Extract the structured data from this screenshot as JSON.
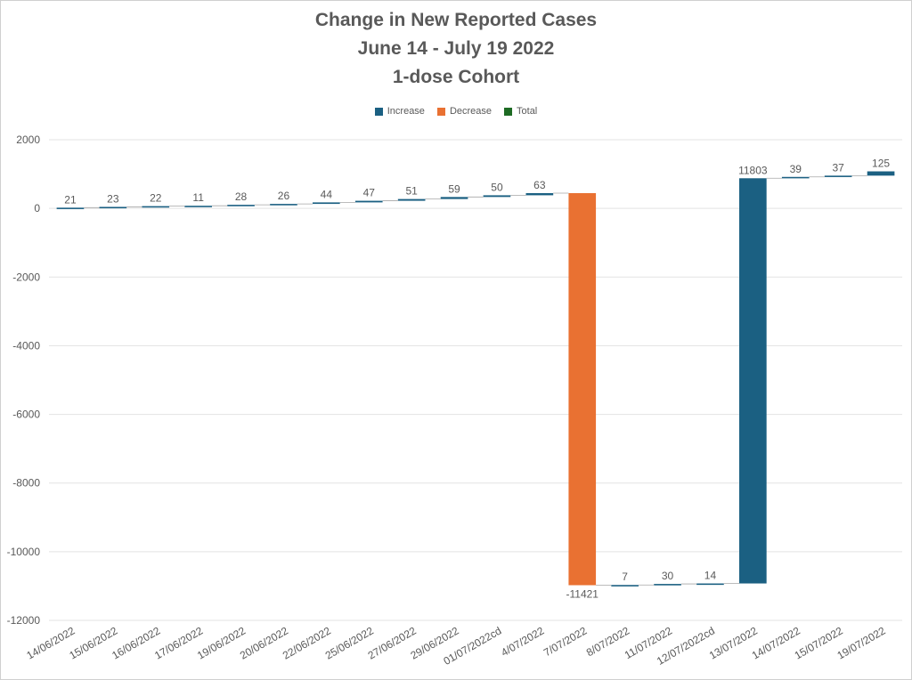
{
  "chart_data": {
    "type": "waterfall",
    "title_lines": [
      "Change in New Reported Cases",
      "June 14 - July 19 2022",
      "1-dose Cohort"
    ],
    "legend": [
      {
        "label": "Increase",
        "color": "#1b6082"
      },
      {
        "label": "Decrease",
        "color": "#e97132"
      },
      {
        "label": "Total",
        "color": "#1e6b24"
      }
    ],
    "ylim": [
      -12000,
      2000
    ],
    "yticks": [
      2000,
      0,
      -2000,
      -4000,
      -6000,
      -8000,
      -10000,
      -12000
    ],
    "categories": [
      "14/06/2022",
      "15/06/2022",
      "16/06/2022",
      "17/06/2022",
      "19/06/2022",
      "20/06/2022",
      "22/06/2022",
      "25/06/2022",
      "27/06/2022",
      "29/06/2022",
      "01/07/2022cd",
      "4/07/2022",
      "7/07/2022",
      "8/07/2022",
      "11/07/2022",
      "12/07/2022cd",
      "13/07/2022",
      "14/07/2022",
      "15/07/2022",
      "19/07/2022"
    ],
    "values": [
      21,
      23,
      22,
      11,
      28,
      26,
      44,
      47,
      51,
      59,
      50,
      63,
      -11421,
      7,
      30,
      14,
      11803,
      39,
      37,
      125
    ],
    "value_labels": [
      "21",
      "23",
      "22",
      "11",
      "28",
      "26",
      "44",
      "47",
      "51",
      "59",
      "50",
      "63",
      "-11421",
      "7",
      "30",
      "14",
      "11803",
      "39",
      "37",
      "125"
    ],
    "grid": true,
    "legend_position": "top"
  }
}
